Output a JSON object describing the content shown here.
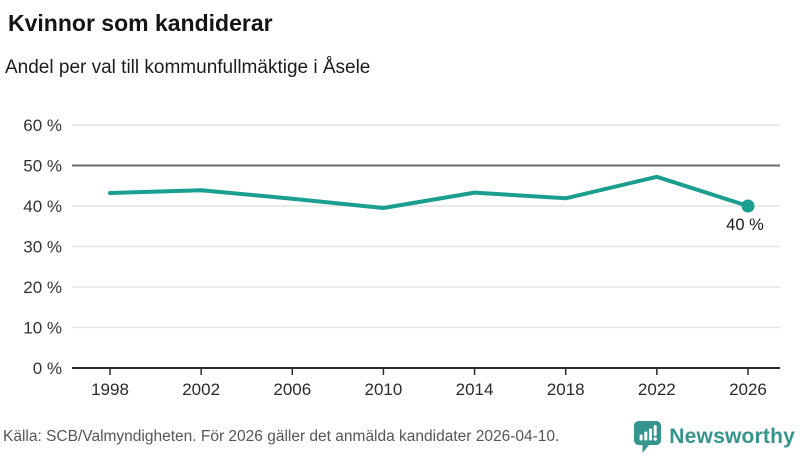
{
  "chart_data": {
    "type": "line",
    "title": "Kvinnor som kandiderar",
    "subtitle": "Andel per val till kommunfullmäktige i Åsele",
    "x": [
      1998,
      2002,
      2006,
      2010,
      2014,
      2018,
      2022,
      2026
    ],
    "x_tick_labels": [
      "1998",
      "2002",
      "2006",
      "2010",
      "2014",
      "2018",
      "2022",
      "2026"
    ],
    "values": [
      43.2,
      43.9,
      41.8,
      39.5,
      43.3,
      41.9,
      47.2,
      40
    ],
    "unit": "%",
    "ylim": [
      0,
      60
    ],
    "y_ticks": [
      0,
      10,
      20,
      30,
      40,
      50,
      60
    ],
    "y_tick_labels": [
      "0 %",
      "10 %",
      "20 %",
      "30 %",
      "40 %",
      "50 %",
      "60 %"
    ],
    "grid": "horizontal",
    "legend": "none",
    "highlight_gridline_value": 50,
    "end_point_label": "40 %",
    "line_color": "#1a9e8f",
    "marker_color": "#1a9e8f",
    "grid_color": "#e4e4e4",
    "highlight_grid_color": "#686868",
    "axis_color": "#2b2b2b",
    "xlabel": "",
    "ylabel": ""
  },
  "footer": {
    "source": "Källa: SCB/Valmyndigheten. För 2026 gäller det anmälda kandidater 2026-04-10.",
    "brand": {
      "name": "Newsworthy",
      "color": "#35948c",
      "icon": "newsworthy-speech-bubble-chart-icon"
    }
  }
}
